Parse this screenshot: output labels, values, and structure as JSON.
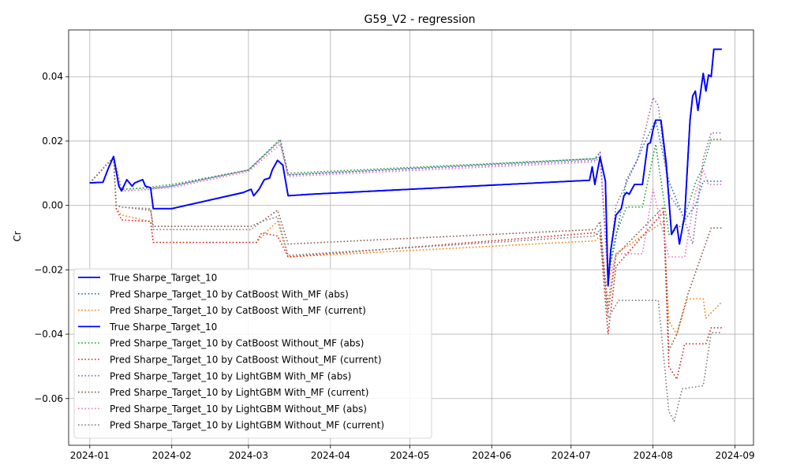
{
  "chart_data": {
    "type": "line",
    "title": "G59_V2 - regression",
    "xlabel": "",
    "ylabel": "Cr",
    "xlim": [
      "2023-12-24",
      "2024-09-08"
    ],
    "ylim": [
      -0.0745,
      0.0545
    ],
    "x_ticks": [
      "2024-01",
      "2024-02",
      "2024-03",
      "2024-04",
      "2024-05",
      "2024-06",
      "2024-07",
      "2024-08",
      "2024-09"
    ],
    "x_tick_dates": [
      "2024-01-01",
      "2024-02-01",
      "2024-03-01",
      "2024-04-01",
      "2024-05-01",
      "2024-06-01",
      "2024-07-01",
      "2024-08-01",
      "2024-09-01"
    ],
    "y_ticks": [
      "0.04",
      "0.02",
      "0.00",
      "−0.02",
      "−0.04",
      "−0.06"
    ],
    "y_tick_values": [
      0.04,
      0.02,
      0.0,
      -0.02,
      -0.04,
      -0.06
    ],
    "grid": true,
    "legend_position": "lower-left",
    "series": [
      {
        "name": "True Sharpe_Target_10",
        "color": "#0000ff",
        "style": "solid",
        "points": [
          [
            "2024-01-01",
            0.007
          ],
          [
            "2024-01-06",
            0.0072
          ],
          [
            "2024-01-08",
            0.0115
          ],
          [
            "2024-01-10",
            0.0152
          ],
          [
            "2024-01-12",
            0.006
          ],
          [
            "2024-01-13",
            0.0045
          ],
          [
            "2024-01-15",
            0.008
          ],
          [
            "2024-01-17",
            0.006
          ],
          [
            "2024-01-18",
            0.007
          ],
          [
            "2024-01-21",
            0.008
          ],
          [
            "2024-01-22",
            0.006
          ],
          [
            "2024-01-24",
            0.0055
          ],
          [
            "2024-01-25",
            -0.001
          ],
          [
            "2024-02-01",
            -0.001
          ],
          [
            "2024-02-28",
            0.004
          ],
          [
            "2024-03-02",
            0.005
          ],
          [
            "2024-03-03",
            0.003
          ],
          [
            "2024-03-05",
            0.005
          ],
          [
            "2024-03-07",
            0.008
          ],
          [
            "2024-03-09",
            0.0085
          ],
          [
            "2024-03-10",
            0.011
          ],
          [
            "2024-03-12",
            0.014
          ],
          [
            "2024-03-14",
            0.0125
          ],
          [
            "2024-03-16",
            0.003
          ],
          [
            "2024-03-25",
            0.0035
          ],
          [
            "2024-07-08",
            0.0078
          ],
          [
            "2024-07-09",
            0.012
          ],
          [
            "2024-07-10",
            0.0065
          ],
          [
            "2024-07-12",
            0.015
          ],
          [
            "2024-07-14",
            0.0075
          ],
          [
            "2024-07-15",
            -0.025
          ],
          [
            "2024-07-16",
            -0.014
          ],
          [
            "2024-07-18",
            -0.003
          ],
          [
            "2024-07-20",
            -0.001
          ],
          [
            "2024-07-21",
            0.003
          ],
          [
            "2024-07-22",
            0.004
          ],
          [
            "2024-07-23",
            0.0035
          ],
          [
            "2024-07-25",
            0.0065
          ],
          [
            "2024-07-28",
            0.0065
          ],
          [
            "2024-07-30",
            0.019
          ],
          [
            "2024-07-31",
            0.0195
          ],
          [
            "2024-08-01",
            0.0235
          ],
          [
            "2024-08-02",
            0.0265
          ],
          [
            "2024-08-04",
            0.0265
          ],
          [
            "2024-08-06",
            0.013
          ],
          [
            "2024-08-08",
            -0.009
          ],
          [
            "2024-08-10",
            -0.006
          ],
          [
            "2024-08-11",
            -0.012
          ],
          [
            "2024-08-13",
            -0.003
          ],
          [
            "2024-08-15",
            0.0265
          ],
          [
            "2024-08-16",
            0.034
          ],
          [
            "2024-08-17",
            0.0355
          ],
          [
            "2024-08-18",
            0.0295
          ],
          [
            "2024-08-20",
            0.041
          ],
          [
            "2024-08-21",
            0.0355
          ],
          [
            "2024-08-22",
            0.0405
          ],
          [
            "2024-08-23",
            0.04
          ],
          [
            "2024-08-24",
            0.0485
          ],
          [
            "2024-08-27",
            0.0485
          ]
        ]
      },
      {
        "name": "Pred Sharpe_Target_10 by CatBoost With_MF (abs)",
        "color": "#1f77b4",
        "style": "dotted",
        "points": [
          [
            "2024-01-01",
            0.007
          ],
          [
            "2024-01-10",
            0.015
          ],
          [
            "2024-01-13",
            0.005
          ],
          [
            "2024-01-24",
            0.0055
          ],
          [
            "2024-01-25",
            0.0052
          ],
          [
            "2024-02-01",
            0.006
          ],
          [
            "2024-03-01",
            0.011
          ],
          [
            "2024-03-13",
            0.0205
          ],
          [
            "2024-03-16",
            0.0095
          ],
          [
            "2024-07-10",
            0.0145
          ],
          [
            "2024-07-12",
            0.0165
          ],
          [
            "2024-07-15",
            -0.022
          ],
          [
            "2024-07-18",
            -0.01
          ],
          [
            "2024-07-22",
            0.008
          ],
          [
            "2024-07-26",
            0.014
          ],
          [
            "2024-07-28",
            0.018
          ],
          [
            "2024-08-02",
            0.0265
          ],
          [
            "2024-08-07",
            0.0075
          ],
          [
            "2024-08-13",
            -0.0045
          ],
          [
            "2024-08-17",
            0.0
          ],
          [
            "2024-08-20",
            0.0075
          ],
          [
            "2024-08-27",
            0.0075
          ]
        ]
      },
      {
        "name": "Pred Sharpe_Target_10 by CatBoost With_MF (current)",
        "color": "#ff7f0e",
        "style": "dotted",
        "points": [
          [
            "2024-01-01",
            0.007
          ],
          [
            "2024-01-10",
            0.015
          ],
          [
            "2024-01-11",
            -0.001
          ],
          [
            "2024-01-13",
            -0.003
          ],
          [
            "2024-01-24",
            -0.005
          ],
          [
            "2024-01-25",
            -0.0115
          ],
          [
            "2024-03-04",
            -0.0115
          ],
          [
            "2024-03-08",
            -0.008
          ],
          [
            "2024-03-12",
            -0.005
          ],
          [
            "2024-03-16",
            -0.016
          ],
          [
            "2024-07-10",
            -0.011
          ],
          [
            "2024-07-12",
            -0.0095
          ],
          [
            "2024-07-15",
            -0.03
          ],
          [
            "2024-07-18",
            -0.015
          ],
          [
            "2024-08-05",
            -0.005
          ],
          [
            "2024-08-07",
            -0.036
          ],
          [
            "2024-08-10",
            -0.04
          ],
          [
            "2024-08-14",
            -0.029
          ],
          [
            "2024-08-20",
            -0.029
          ],
          [
            "2024-08-21",
            -0.035
          ],
          [
            "2024-08-27",
            -0.03
          ]
        ]
      },
      {
        "name": "True Sharpe_Target_10",
        "color": "#0000ff",
        "style": "solid",
        "same_values_as": "series 1"
      },
      {
        "name": "Pred Sharpe_Target_10 by CatBoost Without_MF (abs)",
        "color": "#2ca02c",
        "style": "dotted",
        "points": [
          [
            "2024-01-01",
            0.007
          ],
          [
            "2024-01-10",
            0.015
          ],
          [
            "2024-01-13",
            0.005
          ],
          [
            "2024-01-24",
            0.0055
          ],
          [
            "2024-01-25",
            0.0058
          ],
          [
            "2024-02-01",
            0.0065
          ],
          [
            "2024-03-01",
            0.011
          ],
          [
            "2024-03-13",
            0.0205
          ],
          [
            "2024-03-16",
            0.01
          ],
          [
            "2024-07-10",
            0.0145
          ],
          [
            "2024-07-12",
            0.015
          ],
          [
            "2024-07-15",
            -0.021
          ],
          [
            "2024-07-18",
            -0.009
          ],
          [
            "2024-07-22",
            -0.0005
          ],
          [
            "2024-07-28",
            -0.0005
          ],
          [
            "2024-08-02",
            0.019
          ],
          [
            "2024-08-07",
            -0.009
          ],
          [
            "2024-08-12",
            -0.006
          ],
          [
            "2024-08-17",
            0.007
          ],
          [
            "2024-08-20",
            0.012
          ],
          [
            "2024-08-23",
            0.0205
          ],
          [
            "2024-08-27",
            0.0205
          ]
        ]
      },
      {
        "name": "Pred Sharpe_Target_10 by CatBoost Without_MF (current)",
        "color": "#d62728",
        "style": "dotted",
        "points": [
          [
            "2024-01-01",
            0.007
          ],
          [
            "2024-01-10",
            0.015
          ],
          [
            "2024-01-11",
            -0.001
          ],
          [
            "2024-01-13",
            -0.0045
          ],
          [
            "2024-01-24",
            -0.005
          ],
          [
            "2024-01-25",
            -0.0115
          ],
          [
            "2024-03-04",
            -0.0115
          ],
          [
            "2024-03-06",
            -0.0085
          ],
          [
            "2024-03-12",
            -0.0095
          ],
          [
            "2024-03-16",
            -0.016
          ],
          [
            "2024-07-10",
            -0.0085
          ],
          [
            "2024-07-12",
            -0.0095
          ],
          [
            "2024-07-15",
            -0.04
          ],
          [
            "2024-07-18",
            -0.019
          ],
          [
            "2024-08-05",
            -0.002
          ],
          [
            "2024-08-07",
            -0.05
          ],
          [
            "2024-08-10",
            -0.054
          ],
          [
            "2024-08-13",
            -0.043
          ],
          [
            "2024-08-21",
            -0.043
          ],
          [
            "2024-08-23",
            -0.038
          ],
          [
            "2024-08-27",
            -0.038
          ]
        ]
      },
      {
        "name": "Pred Sharpe_Target_10 by LightGBM With_MF (abs)",
        "color": "#9467bd",
        "style": "dotted",
        "points": [
          [
            "2024-01-01",
            0.007
          ],
          [
            "2024-01-10",
            0.015
          ],
          [
            "2024-01-13",
            0.0045
          ],
          [
            "2024-01-24",
            0.005
          ],
          [
            "2024-01-25",
            0.0055
          ],
          [
            "2024-02-01",
            0.006
          ],
          [
            "2024-03-01",
            0.011
          ],
          [
            "2024-03-13",
            0.02
          ],
          [
            "2024-03-16",
            0.0095
          ],
          [
            "2024-07-10",
            0.014
          ],
          [
            "2024-07-12",
            0.0165
          ],
          [
            "2024-07-15",
            -0.022
          ],
          [
            "2024-07-18",
            0.0
          ],
          [
            "2024-07-22",
            0.007
          ],
          [
            "2024-07-26",
            0.014
          ],
          [
            "2024-07-29",
            0.023
          ],
          [
            "2024-08-01",
            0.0335
          ],
          [
            "2024-08-03",
            0.031
          ],
          [
            "2024-08-07",
            0.0035
          ],
          [
            "2024-08-12",
            -0.0025
          ],
          [
            "2024-08-16",
            -0.012
          ],
          [
            "2024-08-20",
            0.0145
          ],
          [
            "2024-08-23",
            0.0225
          ],
          [
            "2024-08-27",
            0.0225
          ]
        ]
      },
      {
        "name": "Pred Sharpe_Target_10 by LightGBM With_MF (current)",
        "color": "#8c564b",
        "style": "dotted",
        "points": [
          [
            "2024-01-01",
            0.007
          ],
          [
            "2024-01-10",
            0.015
          ],
          [
            "2024-01-11",
            0.0
          ],
          [
            "2024-01-13",
            -0.0005
          ],
          [
            "2024-01-24",
            -0.0015
          ],
          [
            "2024-01-25",
            -0.0065
          ],
          [
            "2024-03-02",
            -0.0065
          ],
          [
            "2024-03-06",
            -0.005
          ],
          [
            "2024-03-12",
            -0.0015
          ],
          [
            "2024-03-16",
            -0.012
          ],
          [
            "2024-07-10",
            -0.0075
          ],
          [
            "2024-07-12",
            -0.005
          ],
          [
            "2024-07-15",
            -0.033
          ],
          [
            "2024-07-18",
            -0.0155
          ],
          [
            "2024-08-05",
            -0.0005
          ],
          [
            "2024-08-07",
            -0.045
          ],
          [
            "2024-08-10",
            -0.04
          ],
          [
            "2024-08-14",
            -0.028
          ],
          [
            "2024-08-20",
            -0.014
          ],
          [
            "2024-08-23",
            -0.007
          ],
          [
            "2024-08-27",
            -0.007
          ]
        ]
      },
      {
        "name": "Pred Sharpe_Target_10 by LightGBM Without_MF (abs)",
        "color": "#e377c2",
        "style": "dotted",
        "points": [
          [
            "2024-01-01",
            0.007
          ],
          [
            "2024-01-10",
            0.015
          ],
          [
            "2024-01-13",
            0.0045
          ],
          [
            "2024-01-24",
            0.005
          ],
          [
            "2024-01-25",
            0.0052
          ],
          [
            "2024-02-01",
            0.0055
          ],
          [
            "2024-03-01",
            0.0105
          ],
          [
            "2024-03-13",
            0.019
          ],
          [
            "2024-03-16",
            0.009
          ],
          [
            "2024-07-10",
            0.0135
          ],
          [
            "2024-07-12",
            0.015
          ],
          [
            "2024-07-15",
            -0.024
          ],
          [
            "2024-07-18",
            -0.015
          ],
          [
            "2024-07-28",
            -0.015
          ],
          [
            "2024-08-01",
            0.005
          ],
          [
            "2024-08-07",
            -0.016
          ],
          [
            "2024-08-13",
            -0.016
          ],
          [
            "2024-08-17",
            0.004
          ],
          [
            "2024-08-20",
            0.011
          ],
          [
            "2024-08-22",
            0.0065
          ],
          [
            "2024-08-27",
            0.0065
          ]
        ]
      },
      {
        "name": "Pred Sharpe_Target_10 by LightGBM Without_MF (current)",
        "color": "#7f7f7f",
        "style": "dotted",
        "points": [
          [
            "2024-01-01",
            0.007
          ],
          [
            "2024-01-10",
            0.015
          ],
          [
            "2024-01-11",
            0.0
          ],
          [
            "2024-01-13",
            -0.0005
          ],
          [
            "2024-01-24",
            -0.001
          ],
          [
            "2024-01-25",
            -0.0075
          ],
          [
            "2024-03-02",
            -0.0075
          ],
          [
            "2024-03-06",
            -0.005
          ],
          [
            "2024-03-12",
            -0.0035
          ],
          [
            "2024-03-16",
            -0.0155
          ],
          [
            "2024-07-10",
            -0.0095
          ],
          [
            "2024-07-12",
            -0.0075
          ],
          [
            "2024-07-15",
            -0.035
          ],
          [
            "2024-07-19",
            -0.0295
          ],
          [
            "2024-08-03",
            -0.0295
          ],
          [
            "2024-08-07",
            -0.064
          ],
          [
            "2024-08-09",
            -0.067
          ],
          [
            "2024-08-12",
            -0.057
          ],
          [
            "2024-08-20",
            -0.056
          ],
          [
            "2024-08-23",
            -0.0395
          ],
          [
            "2024-08-27",
            -0.0395
          ]
        ]
      }
    ]
  }
}
